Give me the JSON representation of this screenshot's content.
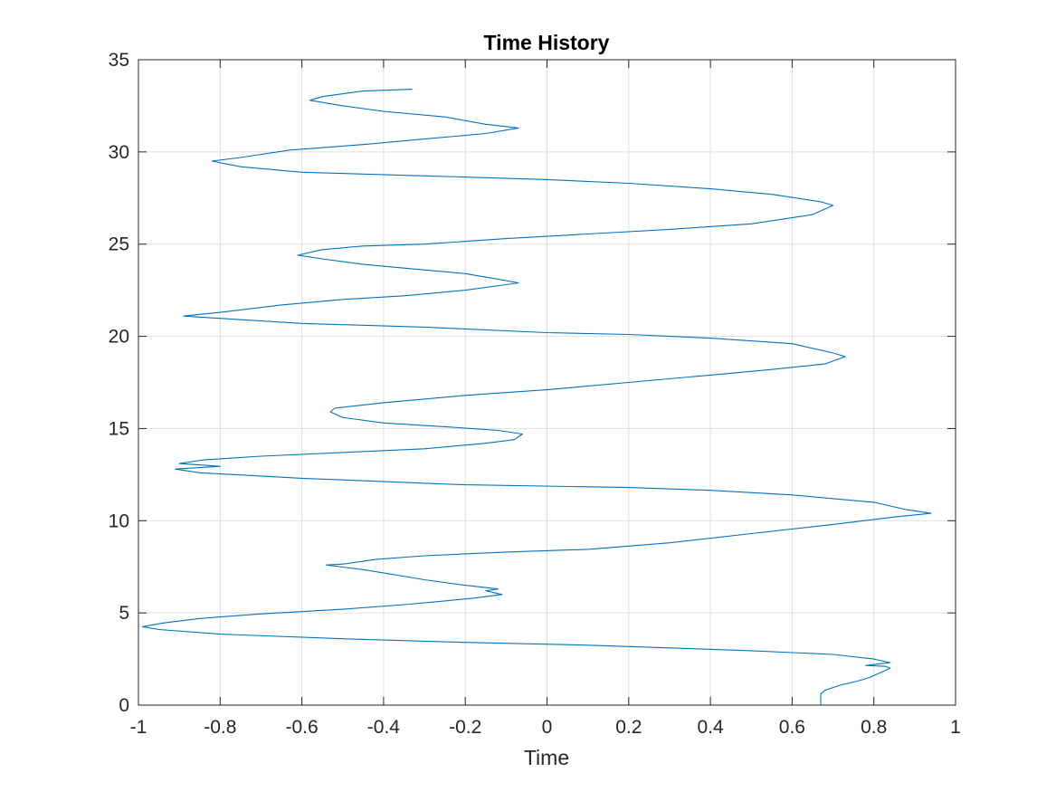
{
  "chart_data": {
    "type": "line",
    "title": "Time History",
    "xlabel": "Time",
    "ylabel": "",
    "xlim": [
      -1,
      1
    ],
    "ylim": [
      0,
      35
    ],
    "xticks": [
      -1,
      -0.8,
      -0.6,
      -0.4,
      -0.2,
      0,
      0.2,
      0.4,
      0.6,
      0.8,
      1
    ],
    "xtick_labels": [
      "-1",
      "-0.8",
      "-0.6",
      "-0.4",
      "-0.2",
      "0",
      "0.2",
      "0.4",
      "0.6",
      "0.8",
      "1"
    ],
    "yticks": [
      0,
      5,
      10,
      15,
      20,
      25,
      30,
      35
    ],
    "ytick_labels": [
      "0",
      "5",
      "10",
      "15",
      "20",
      "25",
      "30",
      "35"
    ],
    "grid": true,
    "legend": "none",
    "colors": {
      "series": "#0072BD",
      "axis": "#262626",
      "grid": "#dfdfdf"
    },
    "series": [
      {
        "color": "#0072BD",
        "points": [
          [
            0.67,
            0.0
          ],
          [
            0.67,
            0.6
          ],
          [
            0.68,
            0.8
          ],
          [
            0.72,
            1.1
          ],
          [
            0.76,
            1.3
          ],
          [
            0.79,
            1.5
          ],
          [
            0.81,
            1.7
          ],
          [
            0.84,
            2.0
          ],
          [
            0.83,
            2.1
          ],
          [
            0.78,
            2.15
          ],
          [
            0.84,
            2.3
          ],
          [
            0.8,
            2.5
          ],
          [
            0.7,
            2.75
          ],
          [
            0.5,
            2.95
          ],
          [
            0.3,
            3.1
          ],
          [
            0.1,
            3.25
          ],
          [
            -0.2,
            3.4
          ],
          [
            -0.5,
            3.6
          ],
          [
            -0.8,
            3.85
          ],
          [
            -0.95,
            4.1
          ],
          [
            -0.99,
            4.25
          ],
          [
            -0.94,
            4.45
          ],
          [
            -0.85,
            4.7
          ],
          [
            -0.7,
            4.95
          ],
          [
            -0.5,
            5.2
          ],
          [
            -0.35,
            5.45
          ],
          [
            -0.25,
            5.65
          ],
          [
            -0.18,
            5.8
          ],
          [
            -0.11,
            6.0
          ],
          [
            -0.15,
            6.2
          ],
          [
            -0.12,
            6.3
          ],
          [
            -0.2,
            6.5
          ],
          [
            -0.3,
            6.8
          ],
          [
            -0.38,
            7.1
          ],
          [
            -0.45,
            7.35
          ],
          [
            -0.54,
            7.6
          ],
          [
            -0.5,
            7.65
          ],
          [
            -0.42,
            7.9
          ],
          [
            -0.3,
            8.1
          ],
          [
            -0.1,
            8.3
          ],
          [
            0.1,
            8.45
          ],
          [
            0.3,
            8.8
          ],
          [
            0.5,
            9.3
          ],
          [
            0.7,
            9.8
          ],
          [
            0.85,
            10.2
          ],
          [
            0.94,
            10.4
          ],
          [
            0.88,
            10.6
          ],
          [
            0.8,
            11.0
          ],
          [
            0.6,
            11.4
          ],
          [
            0.4,
            11.65
          ],
          [
            0.2,
            11.8
          ],
          [
            -0.2,
            11.95
          ],
          [
            -0.6,
            12.3
          ],
          [
            -0.85,
            12.6
          ],
          [
            -0.91,
            12.8
          ],
          [
            -0.8,
            12.95
          ],
          [
            -0.9,
            13.1
          ],
          [
            -0.84,
            13.3
          ],
          [
            -0.7,
            13.5
          ],
          [
            -0.5,
            13.7
          ],
          [
            -0.3,
            13.9
          ],
          [
            -0.15,
            14.2
          ],
          [
            -0.08,
            14.4
          ],
          [
            -0.06,
            14.7
          ],
          [
            -0.12,
            14.9
          ],
          [
            -0.25,
            15.1
          ],
          [
            -0.4,
            15.3
          ],
          [
            -0.5,
            15.6
          ],
          [
            -0.53,
            15.9
          ],
          [
            -0.52,
            16.1
          ],
          [
            -0.4,
            16.4
          ],
          [
            -0.2,
            16.8
          ],
          [
            0.0,
            17.1
          ],
          [
            0.2,
            17.5
          ],
          [
            0.4,
            17.9
          ],
          [
            0.55,
            18.2
          ],
          [
            0.68,
            18.5
          ],
          [
            0.73,
            18.9
          ],
          [
            0.7,
            19.1
          ],
          [
            0.6,
            19.6
          ],
          [
            0.4,
            19.9
          ],
          [
            0.2,
            20.1
          ],
          [
            0.0,
            20.2
          ],
          [
            -0.3,
            20.5
          ],
          [
            -0.6,
            20.7
          ],
          [
            -0.82,
            21.0
          ],
          [
            -0.89,
            21.1
          ],
          [
            -0.8,
            21.3
          ],
          [
            -0.65,
            21.7
          ],
          [
            -0.5,
            22.0
          ],
          [
            -0.35,
            22.2
          ],
          [
            -0.2,
            22.5
          ],
          [
            -0.1,
            22.8
          ],
          [
            -0.07,
            22.9
          ],
          [
            -0.12,
            23.1
          ],
          [
            -0.2,
            23.4
          ],
          [
            -0.35,
            23.7
          ],
          [
            -0.45,
            23.9
          ],
          [
            -0.55,
            24.2
          ],
          [
            -0.61,
            24.4
          ],
          [
            -0.55,
            24.7
          ],
          [
            -0.45,
            24.9
          ],
          [
            -0.3,
            25.0
          ],
          [
            -0.1,
            25.3
          ],
          [
            0.1,
            25.55
          ],
          [
            0.3,
            25.8
          ],
          [
            0.5,
            26.1
          ],
          [
            0.65,
            26.6
          ],
          [
            0.7,
            27.1
          ],
          [
            0.67,
            27.3
          ],
          [
            0.55,
            27.7
          ],
          [
            0.4,
            28.0
          ],
          [
            0.2,
            28.3
          ],
          [
            0.0,
            28.5
          ],
          [
            -0.3,
            28.7
          ],
          [
            -0.6,
            28.9
          ],
          [
            -0.75,
            29.2
          ],
          [
            -0.82,
            29.5
          ],
          [
            -0.75,
            29.7
          ],
          [
            -0.63,
            30.1
          ],
          [
            -0.45,
            30.4
          ],
          [
            -0.3,
            30.7
          ],
          [
            -0.15,
            31.0
          ],
          [
            -0.07,
            31.3
          ],
          [
            -0.15,
            31.5
          ],
          [
            -0.25,
            31.9
          ],
          [
            -0.4,
            32.2
          ],
          [
            -0.5,
            32.5
          ],
          [
            -0.58,
            32.8
          ],
          [
            -0.55,
            33.0
          ],
          [
            -0.45,
            33.3
          ],
          [
            -0.33,
            33.4
          ]
        ]
      }
    ]
  }
}
